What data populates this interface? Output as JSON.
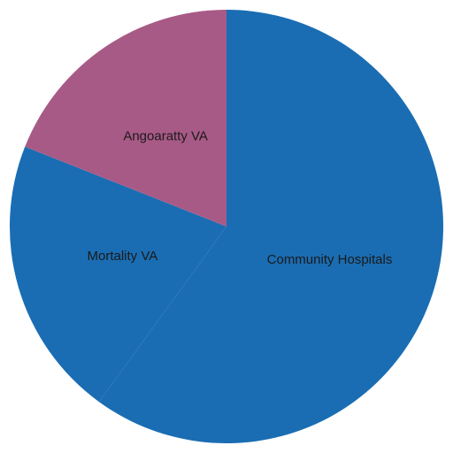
{
  "chart_data": {
    "type": "pie",
    "categories": [
      "Community Hospitals",
      "Mortality VA",
      "Angoaratty VA"
    ],
    "values": [
      60,
      21,
      19
    ],
    "colors": [
      "#1a6db3",
      "#1a6db3",
      "#a85a86"
    ]
  }
}
